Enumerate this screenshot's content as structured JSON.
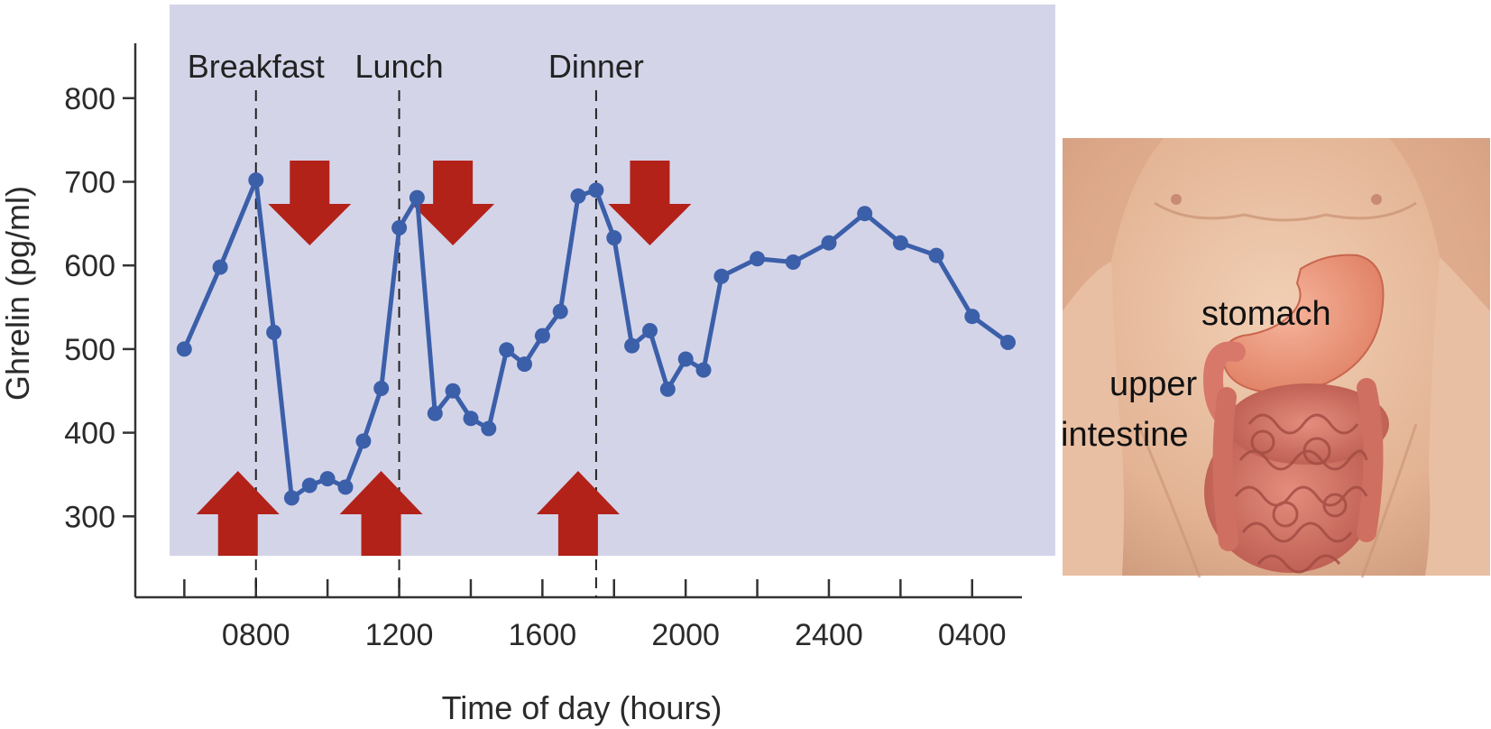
{
  "chart_data": {
    "type": "line",
    "xlabel": "Time of day (hours)",
    "ylabel": "Ghrelin (pg/ml)",
    "yticks": [
      300,
      400,
      500,
      600,
      700,
      800
    ],
    "ylim": [
      240,
      840
    ],
    "xtick_labels": [
      "0800",
      "1200",
      "1600",
      "2000",
      "2400",
      "0400"
    ],
    "grid": false,
    "series": [
      {
        "color": "#3b5fa9",
        "points": [
          {
            "t": 6.0,
            "v": 500
          },
          {
            "t": 7.0,
            "v": 598
          },
          {
            "t": 8.0,
            "v": 702
          },
          {
            "t": 8.5,
            "v": 520
          },
          {
            "t": 9.0,
            "v": 322
          },
          {
            "t": 9.5,
            "v": 337
          },
          {
            "t": 10.0,
            "v": 345
          },
          {
            "t": 10.5,
            "v": 335
          },
          {
            "t": 11.0,
            "v": 390
          },
          {
            "t": 11.5,
            "v": 453
          },
          {
            "t": 12.0,
            "v": 645
          },
          {
            "t": 12.5,
            "v": 681
          },
          {
            "t": 13.0,
            "v": 423
          },
          {
            "t": 13.5,
            "v": 450
          },
          {
            "t": 14.0,
            "v": 417
          },
          {
            "t": 14.5,
            "v": 405
          },
          {
            "t": 15.0,
            "v": 499
          },
          {
            "t": 15.5,
            "v": 482
          },
          {
            "t": 16.0,
            "v": 516
          },
          {
            "t": 16.5,
            "v": 545
          },
          {
            "t": 17.0,
            "v": 683
          },
          {
            "t": 17.5,
            "v": 690
          },
          {
            "t": 18.0,
            "v": 633
          },
          {
            "t": 18.5,
            "v": 504
          },
          {
            "t": 19.0,
            "v": 522
          },
          {
            "t": 19.5,
            "v": 452
          },
          {
            "t": 20.0,
            "v": 488
          },
          {
            "t": 20.5,
            "v": 475
          },
          {
            "t": 21.0,
            "v": 587
          },
          {
            "t": 22.0,
            "v": 608
          },
          {
            "t": 23.0,
            "v": 604
          },
          {
            "t": 24.0,
            "v": 627
          },
          {
            "t": 25.0,
            "v": 662
          },
          {
            "t": 26.0,
            "v": 627
          },
          {
            "t": 27.0,
            "v": 612
          },
          {
            "t": 28.0,
            "v": 539
          },
          {
            "t": 29.0,
            "v": 508
          }
        ]
      }
    ],
    "annotations": [
      {
        "label": "Breakfast",
        "t": 8.0
      },
      {
        "label": "Lunch",
        "t": 12.0
      },
      {
        "label": "Dinner",
        "t": 17.5
      }
    ],
    "up_arrows_t": [
      8.0,
      12.0,
      17.5
    ],
    "down_arrows_t": [
      9.5,
      13.5,
      19.0
    ],
    "colors": {
      "plot_background": "#d4d4e9",
      "line": "#3b5fa9",
      "arrow": "#b22219",
      "axis": "#333333"
    }
  },
  "figure": {
    "image": "anatomical-torso-illustration",
    "labels": {
      "stomach": "stomach",
      "upper": "upper",
      "intestine": "intestine"
    }
  }
}
